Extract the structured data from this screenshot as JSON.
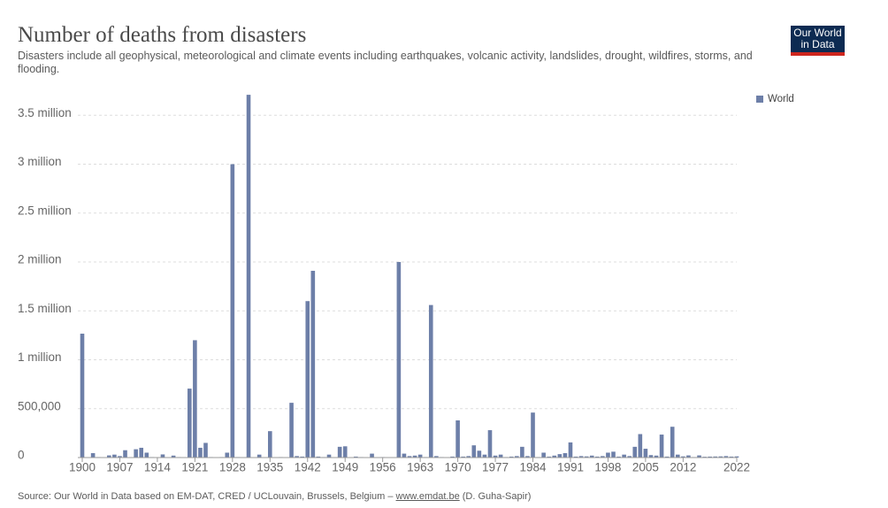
{
  "logo_lines": [
    "Our World",
    "in Data"
  ],
  "chart_data": {
    "type": "bar",
    "title": "Number of deaths from disasters",
    "subtitle": "Disasters include all geophysical, meteorological and climate events including earthquakes, volcanic activity, landslides, drought, wildfires, storms, and flooding.",
    "source_prefix": "Source: Our World in Data based on EM-DAT, CRED / UCLouvain, Brussels, Belgium – ",
    "source_link": "www.emdat.be",
    "source_suffix": " (D. Guha-Sapir)",
    "legend_position": "top-right",
    "grid": true,
    "xlim": [
      1900,
      2022
    ],
    "xticks": [
      1900,
      1907,
      1914,
      1921,
      1928,
      1935,
      1942,
      1949,
      1956,
      1963,
      1970,
      1977,
      1984,
      1991,
      1998,
      2005,
      2012,
      2022
    ],
    "ylim": [
      0,
      3720000
    ],
    "yticks": [
      0,
      {
        "value": 500000,
        "label": "500,000"
      },
      {
        "value": 1000000,
        "label": "1 million"
      },
      {
        "value": 1500000,
        "label": "1.5 million"
      },
      {
        "value": 2000000,
        "label": "2 million"
      },
      {
        "value": 2500000,
        "label": "2.5 million"
      },
      {
        "value": 3000000,
        "label": "3 million"
      },
      {
        "value": 3500000,
        "label": "3.5 million"
      }
    ],
    "x": [
      1900,
      1901,
      1902,
      1903,
      1904,
      1905,
      1906,
      1907,
      1908,
      1909,
      1910,
      1911,
      1912,
      1913,
      1914,
      1915,
      1916,
      1917,
      1918,
      1919,
      1920,
      1921,
      1922,
      1923,
      1924,
      1925,
      1926,
      1927,
      1928,
      1929,
      1930,
      1931,
      1932,
      1933,
      1934,
      1935,
      1936,
      1937,
      1938,
      1939,
      1940,
      1941,
      1942,
      1943,
      1944,
      1945,
      1946,
      1947,
      1948,
      1949,
      1950,
      1951,
      1952,
      1953,
      1954,
      1955,
      1956,
      1957,
      1958,
      1959,
      1960,
      1961,
      1962,
      1963,
      1964,
      1965,
      1966,
      1967,
      1968,
      1969,
      1970,
      1971,
      1972,
      1973,
      1974,
      1975,
      1976,
      1977,
      1978,
      1979,
      1980,
      1981,
      1982,
      1983,
      1984,
      1985,
      1986,
      1987,
      1988,
      1989,
      1990,
      1991,
      1992,
      1993,
      1994,
      1995,
      1996,
      1997,
      1998,
      1999,
      2000,
      2001,
      2002,
      2003,
      2004,
      2005,
      2006,
      2007,
      2008,
      2009,
      2010,
      2011,
      2012,
      2013,
      2014,
      2015,
      2016,
      2017,
      2018,
      2019,
      2020,
      2021,
      2022
    ],
    "series": [
      {
        "name": "World",
        "color": "#6d7fa8",
        "values": [
          1267000,
          200,
          45000,
          5000,
          2000,
          22000,
          30000,
          15000,
          75000,
          3000,
          85000,
          100000,
          50000,
          5000,
          2000,
          32000,
          3000,
          20000,
          5000,
          2000,
          705000,
          1200000,
          100000,
          150000,
          5000,
          3000,
          5000,
          50000,
          3000000,
          5000,
          3000,
          3710000,
          3000,
          30000,
          3000,
          270000,
          3000,
          5000,
          3000,
          560000,
          15000,
          10000,
          1600000,
          1910000,
          10000,
          5000,
          30000,
          3000,
          110000,
          115000,
          3000,
          10000,
          5000,
          3000,
          40000,
          3000,
          5000,
          3000,
          3000,
          2000000,
          40000,
          15000,
          20000,
          30000,
          5000,
          1560000,
          15000,
          5000,
          3000,
          10000,
          380000,
          10000,
          15000,
          125000,
          70000,
          30000,
          280000,
          20000,
          30000,
          5000,
          10000,
          15000,
          110000,
          15000,
          460000,
          5000,
          50000,
          10000,
          20000,
          35000,
          45000,
          155000,
          10000,
          15000,
          12000,
          20000,
          10000,
          15000,
          50000,
          60000,
          10000,
          30000,
          15000,
          110000,
          240000,
          90000,
          25000,
          20000,
          235000,
          10000,
          315000,
          30000,
          12000,
          22000,
          5000,
          22000,
          8000,
          10000,
          11000,
          12000,
          15000,
          10000,
          12000
        ]
      }
    ]
  }
}
